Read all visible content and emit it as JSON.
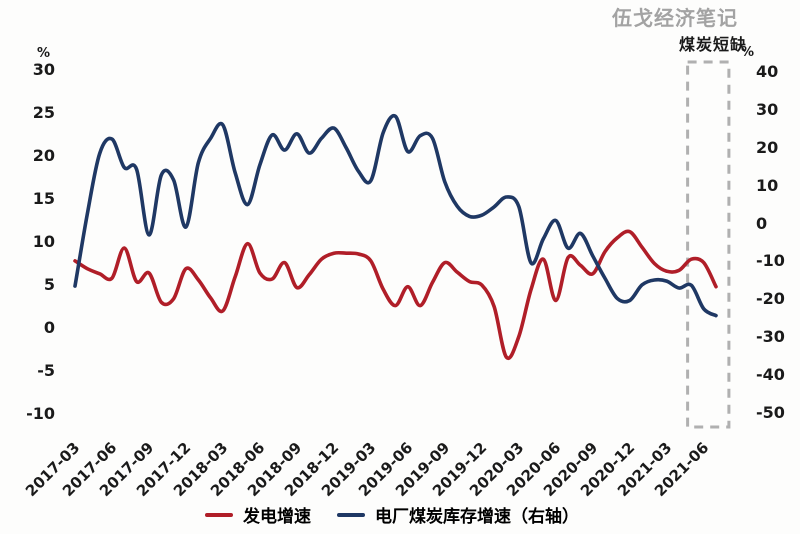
{
  "watermark": "伍戈经济笔记",
  "annotation": "煤炭短缺",
  "left_axis": {
    "unit": "%",
    "ticks": [
      30,
      25,
      20,
      15,
      10,
      5,
      0,
      -5,
      -10
    ],
    "max": 30,
    "min": -10
  },
  "right_axis": {
    "unit": "%",
    "ticks": [
      40,
      30,
      20,
      10,
      0,
      -10,
      -20,
      -30,
      -40,
      -50
    ],
    "max": 40,
    "min": -50
  },
  "legend": [
    {
      "label": "发电增速",
      "color": "#b01e28"
    },
    {
      "label": "电厂煤炭库存增速（右轴）",
      "color": "#1f3864"
    }
  ],
  "chart_data": {
    "type": "line",
    "title": "",
    "xlabel": "",
    "ylabel_left": "%",
    "ylabel_right": "%",
    "grid": false,
    "legend_position": "bottom",
    "x_tick_labels": [
      "2017-03",
      "2017-06",
      "2017-09",
      "2017-12",
      "2018-03",
      "2018-06",
      "2018-09",
      "2018-12",
      "2019-03",
      "2019-06",
      "2019-09",
      "2019-12",
      "2020-03",
      "2020-06",
      "2020-09",
      "2020-12",
      "2021-03",
      "2021-06"
    ],
    "x_months": [
      "2017-03",
      "2017-04",
      "2017-05",
      "2017-06",
      "2017-07",
      "2017-08",
      "2017-09",
      "2017-10",
      "2017-11",
      "2017-12",
      "2018-01",
      "2018-02",
      "2018-03",
      "2018-04",
      "2018-05",
      "2018-06",
      "2018-07",
      "2018-08",
      "2018-09",
      "2018-10",
      "2018-11",
      "2018-12",
      "2019-01",
      "2019-02",
      "2019-03",
      "2019-04",
      "2019-05",
      "2019-06",
      "2019-07",
      "2019-08",
      "2019-09",
      "2019-10",
      "2019-11",
      "2019-12",
      "2020-01",
      "2020-02",
      "2020-03",
      "2020-04",
      "2020-05",
      "2020-06",
      "2020-07",
      "2020-08",
      "2020-09",
      "2020-10",
      "2020-11",
      "2020-12",
      "2021-01",
      "2021-02",
      "2021-03",
      "2021-04",
      "2021-05",
      "2021-06",
      "2021-07"
    ],
    "left_axis_range": [
      -10,
      30
    ],
    "right_axis_range": [
      -50,
      40
    ],
    "series": [
      {
        "name": "发电增速",
        "axis": "left",
        "color": "#b01e28",
        "values": [
          7.8,
          6.9,
          6.3,
          5.8,
          9.3,
          5.4,
          6.4,
          3.0,
          3.4,
          6.9,
          5.6,
          3.5,
          2.0,
          6.0,
          9.8,
          6.4,
          5.7,
          7.6,
          4.7,
          6.2,
          8.0,
          8.7,
          8.7,
          8.6,
          7.8,
          4.5,
          2.6,
          4.8,
          2.6,
          5.3,
          7.6,
          6.5,
          5.4,
          5.0,
          2.5,
          -3.4,
          -1.0,
          4.5,
          8.0,
          3.2,
          8.2,
          7.3,
          6.3,
          8.9,
          10.5,
          11.2,
          9.4,
          7.5,
          6.6,
          6.7,
          8.0,
          7.6,
          4.8
        ]
      },
      {
        "name": "电厂煤炭库存增速（右轴）",
        "axis": "right",
        "color": "#1f3864",
        "values": [
          -16.5,
          2.5,
          18.5,
          22.3,
          14.8,
          14.3,
          -3.0,
          12.8,
          11.5,
          -0.9,
          16.0,
          22.5,
          26.0,
          13.3,
          5.0,
          15.5,
          23.4,
          19.4,
          23.7,
          18.6,
          22.5,
          25.2,
          20.0,
          13.8,
          11.3,
          24.0,
          28.3,
          19.0,
          23.2,
          22.5,
          11.0,
          4.6,
          1.9,
          2.2,
          4.4,
          7.0,
          4.5,
          -10.4,
          -4.0,
          0.8,
          -6.5,
          -2.6,
          -8.5,
          -14.5,
          -19.8,
          -20.3,
          -16.2,
          -14.9,
          -15.2,
          -17.0,
          -16.3,
          -22.5,
          -24.3
        ]
      }
    ],
    "highlight_box": {
      "label": "煤炭短缺",
      "start_month": "2021-04",
      "end_month": "2021-07",
      "color": "#b0b0b0",
      "start_month_pos": 49.7,
      "end_month_pos": 53.05
    }
  }
}
